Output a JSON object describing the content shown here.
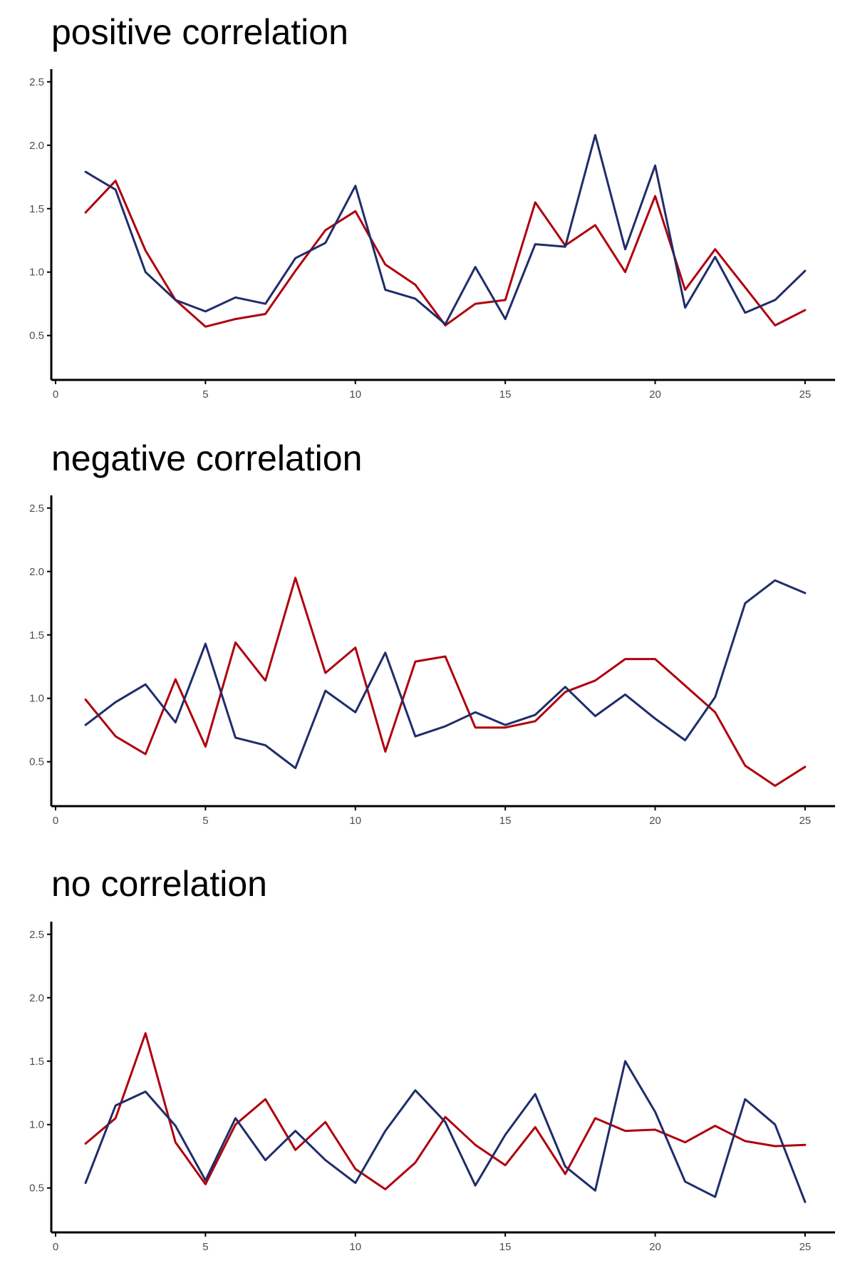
{
  "chart_data": [
    {
      "type": "line",
      "title": "positive correlation",
      "xlabel": "",
      "ylabel": "",
      "xlim": [
        0,
        26
      ],
      "ylim": [
        0.15,
        2.6
      ],
      "x_ticks": [
        0,
        5,
        10,
        15,
        20,
        25
      ],
      "y_ticks": [
        0.5,
        1.0,
        1.5,
        2.0,
        2.5
      ],
      "x_tick_labels": [
        "0",
        "5",
        "10",
        "15",
        "20",
        "25"
      ],
      "y_tick_labels": [
        "0.5",
        "1.0",
        "1.5",
        "2.0",
        "2.5"
      ],
      "grid": false,
      "legend": "none",
      "x": [
        1,
        2,
        3,
        4,
        5,
        6,
        7,
        8,
        9,
        10,
        11,
        12,
        13,
        14,
        15,
        16,
        17,
        18,
        19,
        20,
        21,
        22,
        23,
        24,
        25
      ],
      "series": [
        {
          "color": "#B0000D",
          "values": [
            1.47,
            1.72,
            1.17,
            0.78,
            0.57,
            0.63,
            0.67,
            1.01,
            1.33,
            1.48,
            1.06,
            0.9,
            0.58,
            0.75,
            0.78,
            1.55,
            1.21,
            1.37,
            1.0,
            1.6,
            0.86,
            1.18,
            0.88,
            0.58,
            0.7
          ]
        },
        {
          "color": "#1F2D6B",
          "values": [
            1.79,
            1.65,
            1.0,
            0.78,
            0.69,
            0.8,
            0.75,
            1.11,
            1.23,
            1.68,
            0.86,
            0.79,
            0.59,
            1.04,
            0.63,
            1.22,
            1.2,
            2.08,
            1.18,
            1.84,
            0.72,
            1.12,
            0.68,
            0.78,
            1.01
          ]
        }
      ]
    },
    {
      "type": "line",
      "title": "negative correlation",
      "xlabel": "",
      "ylabel": "",
      "xlim": [
        0,
        26
      ],
      "ylim": [
        0.15,
        2.6
      ],
      "x_ticks": [
        0,
        5,
        10,
        15,
        20,
        25
      ],
      "y_ticks": [
        0.5,
        1.0,
        1.5,
        2.0,
        2.5
      ],
      "x_tick_labels": [
        "0",
        "5",
        "10",
        "15",
        "20",
        "25"
      ],
      "y_tick_labels": [
        "0.5",
        "1.0",
        "1.5",
        "2.0",
        "2.5"
      ],
      "grid": false,
      "legend": "none",
      "x": [
        1,
        2,
        3,
        4,
        5,
        6,
        7,
        8,
        9,
        10,
        11,
        12,
        13,
        14,
        15,
        16,
        17,
        18,
        19,
        20,
        21,
        22,
        23,
        24,
        25
      ],
      "series": [
        {
          "color": "#B0000D",
          "values": [
            0.99,
            0.7,
            0.56,
            1.15,
            0.62,
            1.44,
            1.14,
            1.95,
            1.2,
            1.4,
            0.58,
            1.29,
            1.33,
            0.77,
            0.77,
            0.82,
            1.05,
            1.14,
            1.31,
            1.31,
            1.1,
            0.89,
            0.47,
            0.31,
            0.46
          ]
        },
        {
          "color": "#1F2D6B",
          "values": [
            0.79,
            0.97,
            1.11,
            0.81,
            1.43,
            0.69,
            0.63,
            0.45,
            1.06,
            0.89,
            1.36,
            0.7,
            0.78,
            0.89,
            0.79,
            0.87,
            1.09,
            0.86,
            1.03,
            0.84,
            0.67,
            1.01,
            1.75,
            1.93,
            1.83
          ]
        }
      ]
    },
    {
      "type": "line",
      "title": "no correlation",
      "xlabel": "",
      "ylabel": "",
      "xlim": [
        0,
        26
      ],
      "ylim": [
        0.15,
        2.6
      ],
      "x_ticks": [
        0,
        5,
        10,
        15,
        20,
        25
      ],
      "y_ticks": [
        0.5,
        1.0,
        1.5,
        2.0,
        2.5
      ],
      "x_tick_labels": [
        "0",
        "5",
        "10",
        "15",
        "20",
        "25"
      ],
      "y_tick_labels": [
        "0.5",
        "1.0",
        "1.5",
        "2.0",
        "2.5"
      ],
      "grid": false,
      "legend": "none",
      "x": [
        1,
        2,
        3,
        4,
        5,
        6,
        7,
        8,
        9,
        10,
        11,
        12,
        13,
        14,
        15,
        16,
        17,
        18,
        19,
        20,
        21,
        22,
        23,
        24,
        25
      ],
      "series": [
        {
          "color": "#B0000D",
          "values": [
            0.85,
            1.05,
            1.72,
            0.86,
            0.53,
            1.0,
            1.2,
            0.8,
            1.02,
            0.65,
            0.49,
            0.7,
            1.06,
            0.84,
            0.68,
            0.98,
            0.61,
            1.05,
            0.95,
            0.96,
            0.86,
            0.99,
            0.87,
            0.83,
            0.84
          ]
        },
        {
          "color": "#1F2D6B",
          "values": [
            0.54,
            1.15,
            1.26,
            0.99,
            0.56,
            1.05,
            0.72,
            0.95,
            0.72,
            0.54,
            0.95,
            1.27,
            1.02,
            0.52,
            0.92,
            1.24,
            0.67,
            0.48,
            1.5,
            1.1,
            0.55,
            0.43,
            1.2,
            1.0,
            0.39
          ]
        }
      ]
    }
  ]
}
